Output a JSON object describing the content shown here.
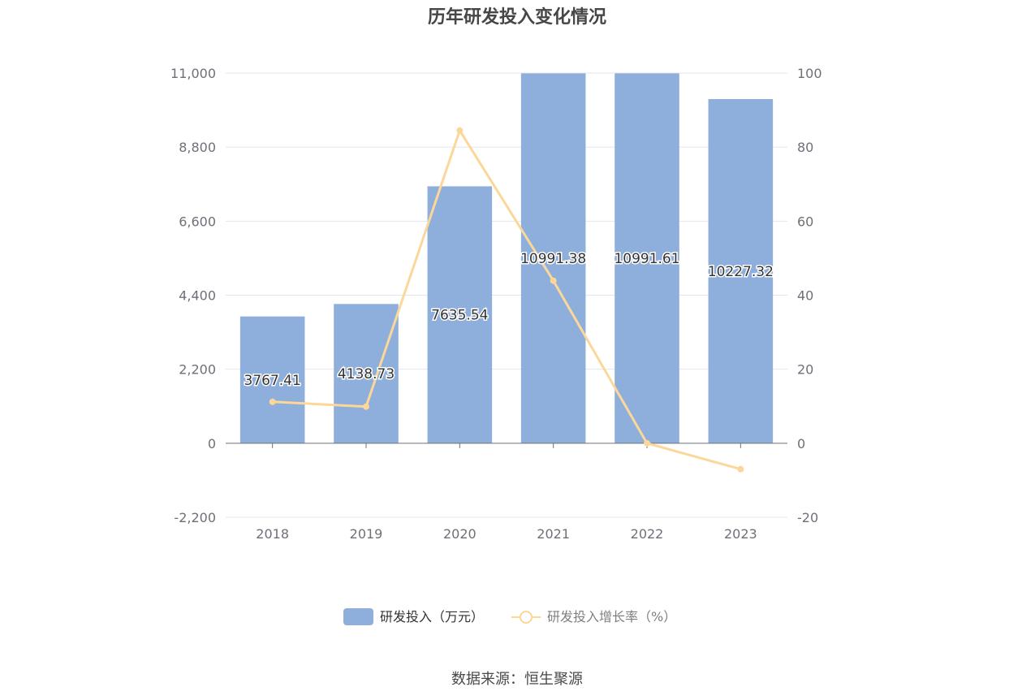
{
  "chart_data": {
    "type": "bar",
    "title": "历年研发投入变化情况",
    "categories": [
      "2018",
      "2019",
      "2020",
      "2021",
      "2022",
      "2023"
    ],
    "series": [
      {
        "name": "研发投入（万元）",
        "type": "bar",
        "axis": "left",
        "color": "#8eaedb",
        "values": [
          3767.41,
          4138.73,
          7635.54,
          10991.38,
          10991.61,
          10227.32
        ],
        "labels": [
          "3767.41",
          "4138.73",
          "7635.54",
          "10991.38",
          "10991.61",
          "10227.32"
        ]
      },
      {
        "name": "研发投入增长率（%）",
        "type": "line",
        "axis": "right",
        "color": "#fbd899",
        "values": [
          11.2,
          9.9,
          84.5,
          43.9,
          0.0,
          -7.0
        ]
      }
    ],
    "left_axis": {
      "ylim": [
        -2200,
        11000
      ],
      "ticks": [
        -2200,
        0,
        2200,
        4400,
        6600,
        8800,
        11000
      ],
      "tick_labels": [
        "-2,200",
        "0",
        "2,200",
        "4,400",
        "6,600",
        "8,800",
        "11,000"
      ]
    },
    "right_axis": {
      "ylim": [
        -20,
        100
      ],
      "ticks": [
        -20,
        0,
        20,
        40,
        60,
        80,
        100
      ],
      "tick_labels": [
        "-20",
        "0",
        "20",
        "40",
        "60",
        "80",
        "100"
      ]
    },
    "grid": true,
    "legend_position": "bottom"
  },
  "source_text": "数据来源：恒生聚源"
}
